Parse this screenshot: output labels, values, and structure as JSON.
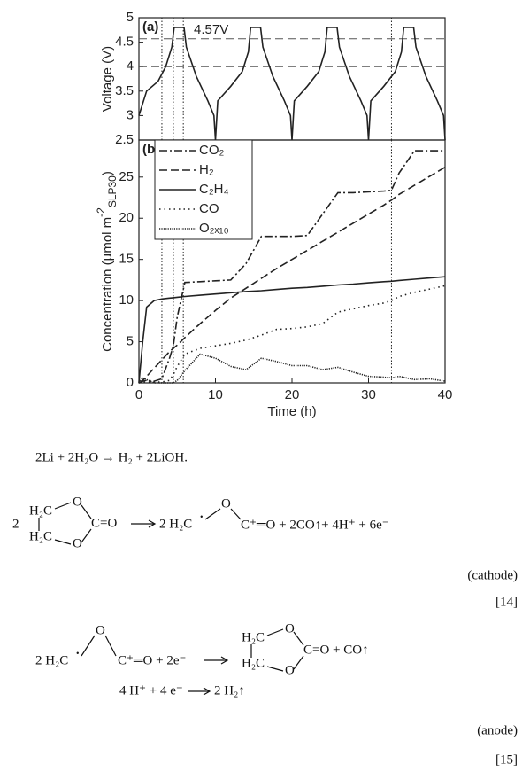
{
  "chart_data": [
    {
      "type": "line",
      "label": "(a)",
      "ylabel": "Voltage (V)",
      "xlim": [
        0,
        40
      ],
      "ylim": [
        2.5,
        5
      ],
      "yticks": [
        2.5,
        3,
        3.5,
        4,
        4.5,
        5
      ],
      "x": [
        0,
        1,
        2.5,
        3.5,
        4.3,
        4.6,
        5.9,
        6.2,
        7.5,
        9,
        9.8,
        10,
        10.3,
        12,
        13.5,
        14.3,
        14.6,
        15.9,
        16.2,
        17.5,
        19,
        19.8,
        20,
        20.3,
        22,
        23.5,
        24.3,
        24.6,
        25.9,
        26.2,
        27.5,
        29,
        29.8,
        30,
        30.3,
        32,
        33.5,
        34.3,
        34.6,
        35.9,
        36.2,
        37.5,
        39,
        39.8,
        40
      ],
      "series": [
        {
          "color": "#222",
          "style": "solid",
          "values": [
            3.0,
            3.5,
            3.7,
            4.0,
            4.4,
            4.8,
            4.8,
            4.4,
            3.8,
            3.3,
            3.0,
            2.5,
            3.3,
            3.6,
            3.9,
            4.3,
            4.8,
            4.8,
            4.4,
            3.8,
            3.3,
            3.0,
            2.5,
            3.3,
            3.6,
            3.9,
            4.3,
            4.8,
            4.8,
            4.4,
            3.8,
            3.3,
            3.0,
            2.5,
            3.3,
            3.6,
            3.9,
            4.3,
            4.8,
            4.8,
            4.4,
            3.8,
            3.3,
            3.0,
            2.5
          ]
        }
      ],
      "hlines": [
        4.57,
        4
      ],
      "annotation": "4.57V",
      "vlines": [
        3,
        4.5,
        5.8,
        33
      ]
    },
    {
      "type": "line",
      "label": "(b)",
      "xlabel": "Time (h)",
      "ylabel": {
        "text": "Concentration (µmol m",
        "sup": "-2",
        "sub": "SLP30",
        "end": ")"
      },
      "xlim": [
        0,
        40
      ],
      "xticks": [
        0,
        10,
        20,
        30,
        40
      ],
      "ylim": [
        0,
        29.5
      ],
      "yticks": [
        0,
        5,
        10,
        15,
        20,
        25
      ],
      "legend": "upper left",
      "vlines": [
        3,
        4.5,
        5.8,
        33
      ],
      "x": [
        0,
        0.5,
        1,
        2,
        3,
        4,
        4.5,
        5,
        6,
        8,
        10,
        12,
        14,
        16,
        18,
        20,
        22,
        24,
        26,
        28,
        30,
        32,
        33,
        34,
        36,
        38,
        40
      ],
      "series": [
        {
          "name": "CO₂",
          "color": "#222",
          "style": "dash-dot",
          "values": [
            0,
            0.2,
            0.3,
            0.2,
            0.5,
            3,
            4.5,
            8,
            12.2,
            12.3,
            12.4,
            12.5,
            14.5,
            17.8,
            17.8,
            17.8,
            17.9,
            20.5,
            23.1,
            23.1,
            23.2,
            23.3,
            23.4,
            25.5,
            28.2,
            28.2,
            28.2
          ]
        },
        {
          "name": "H₂",
          "color": "#222",
          "style": "dashed",
          "values": [
            0,
            0.3,
            0.8,
            1.8,
            2.8,
            3.8,
            4.2,
            4.6,
            5.5,
            7.2,
            8.8,
            10.3,
            11.5,
            12.7,
            13.9,
            15,
            16.1,
            17.2,
            18.3,
            19.4,
            20.5,
            21.6,
            22.2,
            22.9,
            24,
            25.1,
            26.2
          ]
        },
        {
          "name": "C₂H₄",
          "color": "#222",
          "style": "solid",
          "values": [
            0,
            5,
            9.2,
            10,
            10.2,
            10.3,
            10.35,
            10.4,
            10.5,
            10.65,
            10.8,
            10.95,
            11.1,
            11.2,
            11.35,
            11.5,
            11.6,
            11.75,
            11.9,
            12,
            12.15,
            12.3,
            12.35,
            12.45,
            12.6,
            12.75,
            12.9
          ]
        },
        {
          "name": "CO",
          "color": "#222",
          "style": "dotted",
          "values": [
            0,
            0.1,
            0.1,
            0.1,
            0.1,
            0.3,
            1,
            2,
            3.5,
            4.2,
            4.5,
            4.8,
            5.2,
            5.8,
            6.5,
            6.6,
            6.8,
            7.2,
            8.6,
            9,
            9.4,
            9.7,
            10,
            10.5,
            11,
            11.4,
            11.8
          ]
        },
        {
          "name": "O₂ₓ₁₀",
          "color": "#222",
          "style": "dense-dotted",
          "values": [
            0,
            0.6,
            0.4,
            0,
            0,
            0,
            0,
            0.3,
            1.5,
            3.5,
            3,
            2,
            1.6,
            3,
            2.6,
            2.1,
            2.1,
            1.6,
            1.9,
            1.3,
            0.8,
            0.7,
            0.6,
            0.8,
            0.4,
            0.5,
            0.2
          ]
        }
      ]
    }
  ],
  "equations": {
    "reaction": "2Li + 2H₂O → H₂  + 2LiOH.",
    "cathode": {
      "coefficient": "2",
      "ring": [
        "H₂C",
        "O",
        "H₂C",
        "O",
        "C=O"
      ],
      "product": "2 H₂C",
      "radical": "•",
      "product_o": "O",
      "product_rest": "C⁺═O + 2CO↑+ 4H⁺ + 6e⁻",
      "label": "(cathode)",
      "ref": "[14]"
    },
    "anode": {
      "reactant": "2 H₂C",
      "radical": "•",
      "reactant_o": "O",
      "reactant_rest": "C⁺═O + 2e⁻",
      "ring": [
        "H₂C",
        "O",
        "H₂C",
        "O",
        "C=O + CO↑"
      ],
      "hydrogen": "4 H⁺ + 4 e⁻",
      "hydrogen_product": "2 H₂↑",
      "label": "(anode)",
      "ref": "[15]"
    }
  }
}
